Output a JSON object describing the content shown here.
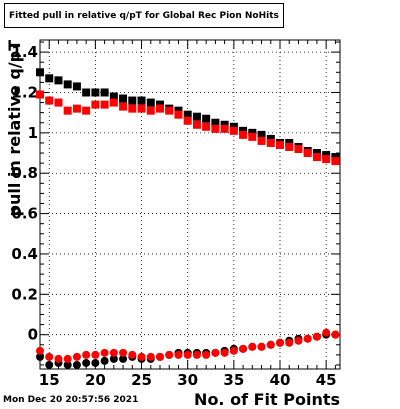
{
  "title": "Fitted pull in relative q/pT  for Global Rec Pion NoHits",
  "timestamp": "Mon Dec 20 20:57:56 2021",
  "chart_data": {
    "type": "scatter",
    "title": "Fitted pull in relative q/pT  for Global Rec Pion NoHits",
    "xlabel": "No. of Fit Points",
    "ylabel": "pull in relative q/pT",
    "xlim": [
      14,
      46.5
    ],
    "ylim": [
      -0.17,
      1.46
    ],
    "x_ticks": [
      15,
      20,
      25,
      30,
      35,
      40,
      45
    ],
    "y_ticks": [
      0,
      0.2,
      0.4,
      0.6,
      0.8,
      1,
      1.2,
      1.4
    ],
    "y_tick_labels": [
      "0",
      "0.2",
      "0.4",
      "0.6",
      "0.8",
      "1",
      "1.2",
      "1.4"
    ],
    "grid": true,
    "series": [
      {
        "marker": "square",
        "color": "#000000",
        "x": [
          14,
          15,
          16,
          17,
          18,
          19,
          20,
          21,
          22,
          23,
          24,
          25,
          26,
          27,
          28,
          29,
          30,
          31,
          32,
          33,
          34,
          35,
          36,
          37,
          38,
          39,
          40,
          41,
          42,
          43,
          44,
          45,
          46
        ],
        "y": [
          1.3,
          1.27,
          1.26,
          1.24,
          1.23,
          1.2,
          1.2,
          1.2,
          1.18,
          1.17,
          1.16,
          1.16,
          1.15,
          1.14,
          1.12,
          1.11,
          1.09,
          1.08,
          1.07,
          1.05,
          1.04,
          1.03,
          1.01,
          1.0,
          0.99,
          0.97,
          0.95,
          0.95,
          0.93,
          0.91,
          0.9,
          0.89,
          0.88
        ]
      },
      {
        "marker": "square",
        "color": "#ff0000",
        "x": [
          14,
          15,
          16,
          17,
          18,
          19,
          20,
          21,
          22,
          23,
          24,
          25,
          26,
          27,
          28,
          29,
          30,
          31,
          32,
          33,
          34,
          35,
          36,
          37,
          38,
          39,
          40,
          41,
          42,
          43,
          44,
          45,
          46
        ],
        "y": [
          1.19,
          1.16,
          1.15,
          1.11,
          1.12,
          1.11,
          1.14,
          1.14,
          1.15,
          1.13,
          1.12,
          1.12,
          1.11,
          1.12,
          1.11,
          1.09,
          1.06,
          1.04,
          1.03,
          1.02,
          1.02,
          1.01,
          0.99,
          0.98,
          0.96,
          0.95,
          0.94,
          0.93,
          0.92,
          0.9,
          0.88,
          0.87,
          0.86
        ]
      },
      {
        "marker": "circle",
        "color": "#000000",
        "x": [
          14,
          15,
          16,
          17,
          18,
          19,
          20,
          21,
          22,
          23,
          24,
          25,
          26,
          27,
          28,
          29,
          30,
          31,
          32,
          33,
          34,
          35,
          36,
          37,
          38,
          39,
          40,
          41,
          42,
          43,
          44,
          45,
          46
        ],
        "y": [
          -0.11,
          -0.15,
          -0.14,
          -0.15,
          -0.15,
          -0.14,
          -0.14,
          -0.13,
          -0.12,
          -0.12,
          -0.11,
          -0.12,
          -0.12,
          -0.11,
          -0.1,
          -0.09,
          -0.09,
          -0.09,
          -0.09,
          -0.09,
          -0.08,
          -0.07,
          -0.07,
          -0.06,
          -0.06,
          -0.05,
          -0.04,
          -0.03,
          -0.02,
          -0.02,
          -0.01,
          0.0,
          0.0
        ]
      },
      {
        "marker": "circle",
        "color": "#ff0000",
        "x": [
          14,
          15,
          16,
          17,
          18,
          19,
          20,
          21,
          22,
          23,
          24,
          25,
          26,
          27,
          28,
          29,
          30,
          31,
          32,
          33,
          34,
          35,
          36,
          37,
          38,
          39,
          40,
          41,
          42,
          43,
          44,
          45,
          46
        ],
        "y": [
          -0.08,
          -0.11,
          -0.12,
          -0.12,
          -0.11,
          -0.1,
          -0.1,
          -0.09,
          -0.09,
          -0.09,
          -0.1,
          -0.11,
          -0.11,
          -0.11,
          -0.1,
          -0.1,
          -0.1,
          -0.1,
          -0.1,
          -0.09,
          -0.09,
          -0.08,
          -0.07,
          -0.06,
          -0.06,
          -0.05,
          -0.04,
          -0.04,
          -0.03,
          -0.02,
          -0.01,
          0.01,
          0.0
        ]
      }
    ]
  }
}
